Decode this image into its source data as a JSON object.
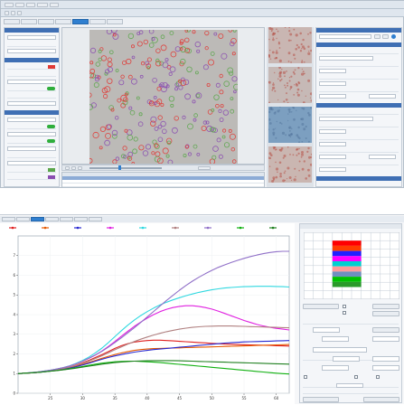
{
  "colors": {
    "accent": "#2f7fd0",
    "panel_header": "#3f6fb4",
    "row_selected": "#8cabd6",
    "toggle_green": "#2fae3c",
    "image_field": "#bcbab7",
    "preview_tint_1": "#c9b6b2",
    "preview_tint_2": "#c6b9b6",
    "preview_tint_3": "#7c9fc0",
    "preview_tint_4": "#cab6b1",
    "cell_red": "#e03a36",
    "cell_green": "#5aa64a",
    "cell_purple": "#8a4db0"
  },
  "plate_colors": [
    "#ff0000",
    "#ff3c00",
    "#2020ff",
    "#ff00ff",
    "#00d0d0",
    "#ff9a9a",
    "#6f8fbf",
    "#00c000",
    "#2a9a2a"
  ],
  "chart_data": {
    "type": "line",
    "title": "",
    "xlabel": "",
    "ylabel": "",
    "x_ticks": [
      25,
      30,
      35,
      40,
      45,
      50,
      55,
      60
    ],
    "y_ticks": [
      0,
      1,
      2,
      3,
      4,
      5,
      6,
      7
    ],
    "xlim": [
      20,
      62
    ],
    "ylim": [
      0,
      8
    ],
    "x": [
      20,
      21,
      22,
      23,
      24,
      25,
      26,
      27,
      28,
      29,
      30,
      31,
      32,
      33,
      34,
      35,
      36,
      37,
      38,
      39,
      40,
      41,
      42,
      43,
      44,
      45,
      46,
      47,
      48,
      49,
      50,
      51,
      52,
      53,
      54,
      55,
      56,
      57,
      58,
      59,
      60,
      61,
      62
    ],
    "series": [
      {
        "color": "#e02020",
        "values": [
          1.0,
          1.02,
          1.04,
          1.06,
          1.1,
          1.15,
          1.2,
          1.26,
          1.33,
          1.43,
          1.55,
          1.68,
          1.82,
          1.97,
          2.12,
          2.28,
          2.42,
          2.52,
          2.6,
          2.65,
          2.68,
          2.7,
          2.7,
          2.68,
          2.66,
          2.64,
          2.62,
          2.6,
          2.58,
          2.56,
          2.54,
          2.52,
          2.5,
          2.49,
          2.48,
          2.47,
          2.46,
          2.45,
          2.44,
          2.43,
          2.42,
          2.41,
          2.4
        ]
      },
      {
        "color": "#e65a00",
        "values": [
          1.0,
          1.02,
          1.04,
          1.06,
          1.1,
          1.14,
          1.19,
          1.24,
          1.3,
          1.38,
          1.47,
          1.57,
          1.67,
          1.78,
          1.88,
          1.97,
          2.05,
          2.12,
          2.18,
          2.22,
          2.25,
          2.27,
          2.28,
          2.29,
          2.3,
          2.31,
          2.32,
          2.33,
          2.34,
          2.35,
          2.36,
          2.37,
          2.38,
          2.39,
          2.4,
          2.41,
          2.42,
          2.43,
          2.44,
          2.45,
          2.46,
          2.47,
          2.48
        ]
      },
      {
        "color": "#2828d0",
        "values": [
          1.0,
          1.02,
          1.04,
          1.06,
          1.09,
          1.13,
          1.17,
          1.22,
          1.28,
          1.35,
          1.44,
          1.53,
          1.63,
          1.73,
          1.82,
          1.9,
          1.97,
          2.03,
          2.09,
          2.14,
          2.18,
          2.22,
          2.25,
          2.28,
          2.31,
          2.34,
          2.37,
          2.4,
          2.43,
          2.46,
          2.49,
          2.52,
          2.55,
          2.57,
          2.59,
          2.61,
          2.62,
          2.63,
          2.64,
          2.65,
          2.66,
          2.67,
          2.68
        ]
      },
      {
        "color": "#e020e0",
        "values": [
          1.0,
          1.02,
          1.05,
          1.08,
          1.12,
          1.17,
          1.23,
          1.3,
          1.39,
          1.5,
          1.63,
          1.78,
          1.95,
          2.15,
          2.38,
          2.63,
          2.9,
          3.15,
          3.4,
          3.62,
          3.82,
          4.0,
          4.15,
          4.27,
          4.36,
          4.42,
          4.45,
          4.45,
          4.42,
          4.36,
          4.28,
          4.18,
          4.06,
          3.94,
          3.82,
          3.7,
          3.6,
          3.5,
          3.42,
          3.35,
          3.3,
          3.26,
          3.22
        ]
      },
      {
        "color": "#30d8e0",
        "values": [
          1.0,
          1.02,
          1.05,
          1.08,
          1.12,
          1.17,
          1.23,
          1.3,
          1.4,
          1.52,
          1.67,
          1.85,
          2.06,
          2.3,
          2.58,
          2.88,
          3.18,
          3.46,
          3.72,
          3.95,
          4.15,
          4.33,
          4.49,
          4.63,
          4.75,
          4.86,
          4.96,
          5.05,
          5.13,
          5.2,
          5.26,
          5.31,
          5.35,
          5.38,
          5.4,
          5.42,
          5.43,
          5.44,
          5.44,
          5.44,
          5.43,
          5.42,
          5.4
        ]
      },
      {
        "color": "#b08080",
        "values": [
          1.0,
          1.02,
          1.04,
          1.07,
          1.11,
          1.15,
          1.2,
          1.26,
          1.33,
          1.42,
          1.52,
          1.64,
          1.77,
          1.91,
          2.06,
          2.21,
          2.36,
          2.5,
          2.63,
          2.75,
          2.86,
          2.96,
          3.05,
          3.13,
          3.2,
          3.26,
          3.31,
          3.35,
          3.38,
          3.4,
          3.41,
          3.42,
          3.42,
          3.42,
          3.41,
          3.4,
          3.39,
          3.38,
          3.37,
          3.36,
          3.35,
          3.34,
          3.33
        ]
      },
      {
        "color": "#9070c8",
        "values": [
          1.0,
          1.02,
          1.05,
          1.08,
          1.12,
          1.17,
          1.23,
          1.3,
          1.39,
          1.5,
          1.63,
          1.78,
          1.95,
          2.14,
          2.35,
          2.58,
          2.82,
          3.07,
          3.33,
          3.6,
          3.88,
          4.16,
          4.44,
          4.72,
          4.98,
          5.24,
          5.48,
          5.7,
          5.9,
          6.08,
          6.25,
          6.4,
          6.53,
          6.65,
          6.76,
          6.86,
          6.95,
          7.03,
          7.1,
          7.16,
          7.2,
          7.22,
          7.22
        ]
      },
      {
        "color": "#10b010",
        "values": [
          1.0,
          1.02,
          1.04,
          1.06,
          1.09,
          1.12,
          1.16,
          1.2,
          1.25,
          1.3,
          1.36,
          1.42,
          1.48,
          1.53,
          1.57,
          1.6,
          1.62,
          1.63,
          1.63,
          1.62,
          1.6,
          1.58,
          1.56,
          1.53,
          1.5,
          1.47,
          1.44,
          1.41,
          1.38,
          1.35,
          1.32,
          1.29,
          1.26,
          1.23,
          1.2,
          1.17,
          1.14,
          1.11,
          1.08,
          1.05,
          1.02,
          1.0,
          0.98
        ]
      },
      {
        "color": "#208020",
        "values": [
          1.0,
          1.02,
          1.04,
          1.06,
          1.09,
          1.12,
          1.15,
          1.19,
          1.23,
          1.28,
          1.33,
          1.38,
          1.43,
          1.48,
          1.52,
          1.56,
          1.59,
          1.61,
          1.63,
          1.64,
          1.65,
          1.66,
          1.66,
          1.66,
          1.66,
          1.65,
          1.64,
          1.63,
          1.62,
          1.61,
          1.6,
          1.59,
          1.58,
          1.57,
          1.56,
          1.55,
          1.54,
          1.53,
          1.52,
          1.51,
          1.5,
          1.49,
          1.48
        ]
      }
    ]
  }
}
